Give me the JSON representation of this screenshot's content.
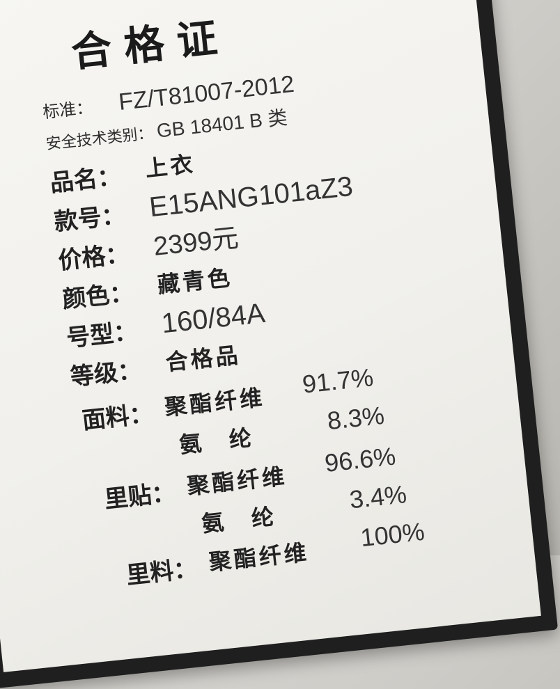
{
  "title": "合格证",
  "standard": {
    "label": "标准：",
    "value": "FZ/T81007-2012"
  },
  "safety": {
    "label": "安全技术类别：",
    "value": "GB 18401 B 类"
  },
  "name": {
    "label": "品名：",
    "value": "上衣"
  },
  "style": {
    "label": "款号：",
    "value": "E15ANG101aZ3"
  },
  "price": {
    "label": "价格：",
    "value": "2399元"
  },
  "color": {
    "label": "颜色：",
    "value": "藏青色"
  },
  "size": {
    "label": "号型：",
    "value": "160/84A"
  },
  "grade": {
    "label": "等级：",
    "value": "合格品"
  },
  "fabric": {
    "label": "面料：",
    "items": [
      {
        "material": "聚酯纤维",
        "percent": "91.7%"
      },
      {
        "material": "氨　纶",
        "percent": "8.3%"
      }
    ]
  },
  "interlining": {
    "label": "里贴：",
    "items": [
      {
        "material": "聚酯纤维",
        "percent": "96.6%"
      },
      {
        "material": "氨　纶",
        "percent": "3.4%"
      }
    ]
  },
  "lining": {
    "label": "里料：",
    "items": [
      {
        "material": "聚酯纤维",
        "percent": "100%"
      }
    ]
  }
}
